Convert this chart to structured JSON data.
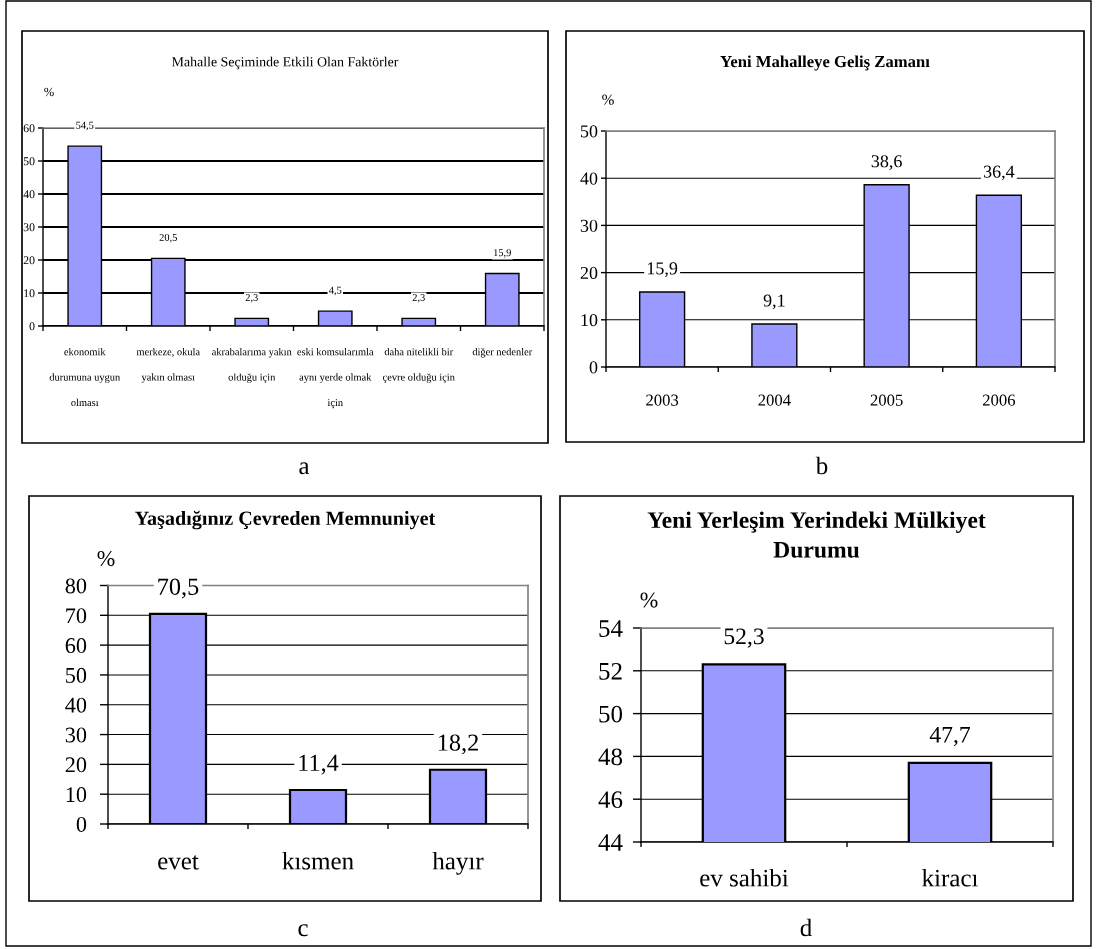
{
  "chart_data": [
    {
      "type": "bar",
      "title": "Mahalle Seçiminde Etkili Olan Faktörler",
      "ylabel": "%",
      "categories": [
        "ekonomik durumuna uygun olması",
        "merkeze, okula yakın olması",
        "akrabalarıma yakın olduğu için",
        "eski komsularımla aynı yerde olmak için",
        "daha nitelikli bir çevre olduğu için",
        "diğer nedenler"
      ],
      "values": [
        54.5,
        20.5,
        2.3,
        4.5,
        2.3,
        15.9
      ],
      "value_labels": [
        "54,5",
        "20,5",
        "2,3",
        "4,5",
        "2,3",
        "15,9"
      ],
      "color": "#9999ff",
      "ylim": [
        0,
        60
      ],
      "yticks": [
        0,
        10,
        20,
        30,
        40,
        50,
        60
      ],
      "grid": "y",
      "annotations": [
        "a"
      ]
    },
    {
      "type": "bar",
      "title": "Yeni Mahalleye Geliş Zamanı",
      "ylabel": "%",
      "categories": [
        "2003",
        "2004",
        "2005",
        "2006"
      ],
      "values": [
        15.9,
        9.1,
        38.6,
        36.4
      ],
      "value_labels": [
        "15,9",
        "9,1",
        "38,6",
        "36,4"
      ],
      "color": "#9999ff",
      "ylim": [
        0,
        50
      ],
      "yticks": [
        0,
        10,
        20,
        30,
        40,
        50
      ],
      "grid": "y",
      "annotations": [
        "b"
      ]
    },
    {
      "type": "bar",
      "title": "Yaşadığınız Çevreden Memnuniyet",
      "ylabel": "%",
      "categories": [
        "evet",
        "kısmen",
        "hayır"
      ],
      "values": [
        70.5,
        11.4,
        18.2
      ],
      "value_labels": [
        "70,5",
        "11,4",
        "18,2"
      ],
      "color": "#9999ff",
      "ylim": [
        0,
        80
      ],
      "yticks": [
        0,
        10,
        20,
        30,
        40,
        50,
        60,
        70,
        80
      ],
      "grid": "y",
      "annotations": [
        "c"
      ]
    },
    {
      "type": "bar",
      "title": "Yeni Yerleşim Yerindeki Mülkiyet Durumu",
      "ylabel": "%",
      "categories": [
        "ev sahibi",
        "kiracı"
      ],
      "values": [
        52.3,
        47.7
      ],
      "value_labels": [
        "52,3",
        "47,7"
      ],
      "color": "#9999ff",
      "ylim": [
        44,
        54
      ],
      "yticks": [
        44,
        46,
        48,
        50,
        52,
        54
      ],
      "grid": "y",
      "annotations": [
        "d"
      ]
    }
  ]
}
